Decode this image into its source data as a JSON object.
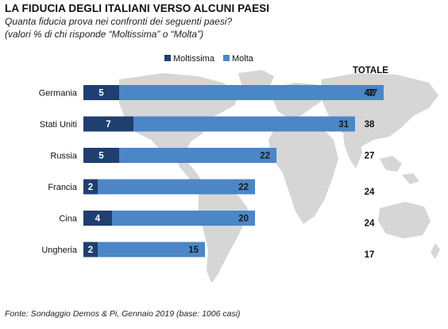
{
  "header": {
    "title": "LA FIDUCIA DEGLI ITALIANI VERSO ALCUNI PAESI",
    "subtitle_line1": "Quanta fiducia prova nei confronti dei seguenti paesi?",
    "subtitle_line2": "(valori % di chi risponde “Moltissima” o “Molta”)"
  },
  "footer": {
    "source": "Fonte: Sondaggio Demos & Pi, Gennaio 2019 (base: 1006 casi)"
  },
  "colors": {
    "moltissima": "#1f3f70",
    "molta": "#4b86c6",
    "map": "#d6d6d6"
  },
  "chart_data": {
    "type": "bar",
    "orientation": "horizontal",
    "stacked": true,
    "categories": [
      "Germania",
      "Stati Uniti",
      "Russia",
      "Francia",
      "Cina",
      "Ungheria"
    ],
    "series": [
      {
        "name": "Moltissima",
        "values": [
          5,
          7,
          5,
          2,
          4,
          2
        ]
      },
      {
        "name": "Molta",
        "values": [
          37,
          31,
          22,
          22,
          20,
          15
        ]
      }
    ],
    "totals_label": "TOTALE",
    "totals": [
      42,
      38,
      27,
      24,
      24,
      17
    ],
    "legend_position": "top",
    "grid": false
  }
}
